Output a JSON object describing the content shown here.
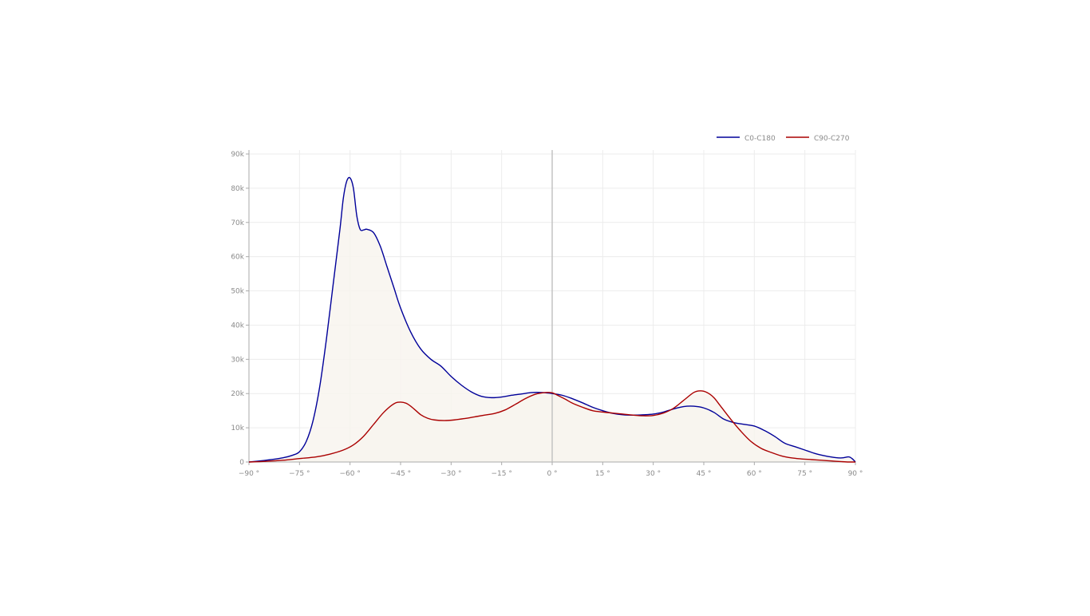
{
  "chart_data": {
    "type": "line",
    "x_ticks": [
      -90,
      -75,
      -60,
      -45,
      -30,
      -15,
      0,
      15,
      30,
      45,
      60,
      75,
      90
    ],
    "x_tick_labels": [
      "−90 °",
      "−75 °",
      "−60 °",
      "−45 °",
      "−30 °",
      "−15 °",
      "0 °",
      "15 °",
      "30 °",
      "45 °",
      "60 °",
      "75 °",
      "90 °"
    ],
    "y_ticks": [
      0,
      10000,
      20000,
      30000,
      40000,
      50000,
      60000,
      70000,
      80000,
      90000
    ],
    "y_tick_labels": [
      "0",
      "10k",
      "20k",
      "30k",
      "40k",
      "50k",
      "60k",
      "70k",
      "80k",
      "90k"
    ],
    "xlim": [
      -90,
      90
    ],
    "ylim": [
      0,
      90000
    ],
    "grid": true,
    "legend_position": "top-right",
    "series": [
      {
        "name": "C0-C180",
        "color": "#000099",
        "fill": "#f8f5ee",
        "x": [
          -90,
          -85,
          -80,
          -77,
          -75,
          -73,
          -71,
          -69,
          -67,
          -65,
          -63,
          -62,
          -61,
          -60,
          -59,
          -58,
          -57,
          -56,
          -55,
          -53,
          -51,
          -49,
          -47,
          -45,
          -42,
          -39,
          -36,
          -33,
          -30,
          -27,
          -24,
          -21,
          -18,
          -15,
          -12,
          -9,
          -6,
          -3,
          0,
          3,
          6,
          9,
          12,
          15,
          18,
          21,
          24,
          27,
          30,
          33,
          36,
          39,
          42,
          45,
          48,
          51,
          54,
          57,
          60,
          63,
          66,
          69,
          72,
          75,
          78,
          81,
          84,
          86,
          88,
          89,
          90
        ],
        "y": [
          0,
          500,
          1200,
          2000,
          3000,
          6000,
          12000,
          22000,
          36000,
          52000,
          68000,
          77000,
          82000,
          83000,
          80000,
          72000,
          68000,
          67800,
          68000,
          67000,
          63000,
          57000,
          51000,
          45000,
          38000,
          33000,
          30000,
          28000,
          25000,
          22500,
          20500,
          19200,
          18800,
          19000,
          19500,
          19900,
          20300,
          20300,
          20000,
          19500,
          18500,
          17300,
          16000,
          15000,
          14200,
          13800,
          13700,
          13800,
          14000,
          14600,
          15500,
          16200,
          16300,
          15800,
          14500,
          12500,
          11500,
          11000,
          10500,
          9200,
          7500,
          5500,
          4500,
          3500,
          2500,
          1800,
          1300,
          1200,
          1500,
          1000,
          0
        ]
      },
      {
        "name": "C90-C270",
        "color": "#aa0000",
        "fill": "#f8f5ee",
        "x": [
          -90,
          -85,
          -80,
          -75,
          -70,
          -66,
          -62,
          -59,
          -56,
          -53,
          -50,
          -47,
          -45,
          -43,
          -41,
          -39,
          -37,
          -35,
          -32,
          -29,
          -26,
          -23,
          -20,
          -17,
          -14,
          -11,
          -8,
          -5,
          -2,
          0,
          2,
          4,
          6,
          9,
          12,
          15,
          18,
          21,
          24,
          27,
          30,
          33,
          36,
          39,
          42,
          44,
          46,
          48,
          50,
          53,
          56,
          59,
          62,
          65,
          68,
          71,
          74,
          77,
          80,
          83,
          86,
          88,
          90
        ],
        "y": [
          0,
          200,
          500,
          1000,
          1500,
          2300,
          3500,
          5000,
          7500,
          11000,
          14500,
          17000,
          17500,
          17000,
          15500,
          13800,
          12800,
          12300,
          12100,
          12300,
          12700,
          13200,
          13700,
          14200,
          15200,
          16800,
          18500,
          19800,
          20300,
          20200,
          19300,
          18300,
          17200,
          16000,
          15000,
          14600,
          14300,
          14000,
          13700,
          13500,
          13600,
          14300,
          15700,
          18000,
          20300,
          20800,
          20300,
          18800,
          16300,
          12500,
          9000,
          6000,
          4000,
          2800,
          1800,
          1200,
          900,
          700,
          500,
          300,
          100,
          0,
          0
        ]
      }
    ]
  }
}
